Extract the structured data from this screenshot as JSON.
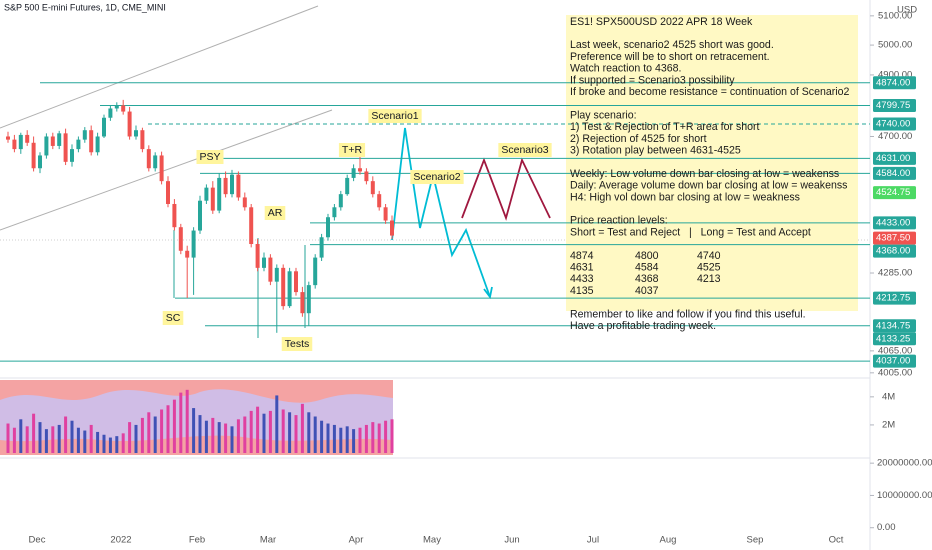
{
  "header": {
    "symbol": "S&P 500 E-mini Futures, 1D, CME_MINI",
    "currency": "USD"
  },
  "chart_data": {
    "type": "candlestick",
    "log_scale": true,
    "ylim": [
      3991,
      5155
    ],
    "yticks": [
      {
        "value": 5100,
        "label": "5100.00"
      },
      {
        "value": 5000,
        "label": "5000.00"
      },
      {
        "value": 4900,
        "label": "4900.00"
      },
      {
        "value": 4700,
        "label": "4700.00"
      },
      {
        "value": 4285,
        "label": "4285.00"
      },
      {
        "value": 4065,
        "label": "4065.00"
      },
      {
        "value": 4005,
        "label": "4005.00"
      }
    ],
    "x_labels": [
      "Dec",
      "2022",
      "Feb",
      "Mar",
      "Apr",
      "May",
      "Jun",
      "Jul",
      "Aug",
      "Sep",
      "Oct"
    ],
    "up_color": "#26a69a",
    "down_color": "#ef5350",
    "open": [
      4700,
      4690,
      4660,
      4705,
      4680,
      4600,
      4640,
      4700,
      4670,
      4710,
      4620,
      4660,
      4690,
      4720,
      4650,
      4700,
      4760,
      4790,
      4800,
      4780,
      4700,
      4720,
      4660,
      4600,
      4640,
      4560,
      4490,
      4420,
      4350,
      4330,
      4410,
      4500,
      4540,
      4470,
      4570,
      4520,
      4580,
      4510,
      4480,
      4370,
      4300,
      4330,
      4260,
      4300,
      4190,
      4290,
      4230,
      4170,
      4250,
      4330,
      4390,
      4450,
      4480,
      4520,
      4570,
      4600,
      4590,
      4560,
      4520,
      4480,
      4440
    ],
    "high": [
      4715,
      4705,
      4712,
      4720,
      4700,
      4650,
      4710,
      4712,
      4718,
      4725,
      4675,
      4700,
      4730,
      4735,
      4712,
      4770,
      4798,
      4810,
      4818,
      4795,
      4735,
      4728,
      4672,
      4650,
      4652,
      4575,
      4505,
      4430,
      4365,
      4420,
      4515,
      4550,
      4560,
      4585,
      4590,
      4595,
      4590,
      4525,
      4490,
      4385,
      4345,
      4340,
      4310,
      4310,
      4300,
      4300,
      4245,
      4260,
      4340,
      4400,
      4460,
      4490,
      4530,
      4580,
      4612,
      4637,
      4600,
      4575,
      4530,
      4490,
      4455
    ],
    "low": [
      4680,
      4650,
      4645,
      4670,
      4590,
      4585,
      4630,
      4660,
      4660,
      4610,
      4605,
      4650,
      4680,
      4640,
      4640,
      4695,
      4750,
      4780,
      4770,
      4690,
      4690,
      4650,
      4590,
      4590,
      4550,
      4480,
      4410,
      4340,
      4213,
      4222,
      4400,
      4490,
      4460,
      4462,
      4510,
      4510,
      4500,
      4470,
      4360,
      4290,
      4290,
      4250,
      4115,
      4180,
      4185,
      4220,
      4160,
      4135,
      4240,
      4320,
      4380,
      4440,
      4470,
      4515,
      4560,
      4580,
      4550,
      4510,
      4470,
      4430,
      4385
    ],
    "close": [
      4690,
      4660,
      4705,
      4680,
      4600,
      4640,
      4700,
      4670,
      4710,
      4620,
      4660,
      4690,
      4720,
      4650,
      4700,
      4760,
      4790,
      4800,
      4780,
      4700,
      4720,
      4660,
      4600,
      4640,
      4560,
      4490,
      4420,
      4350,
      4330,
      4410,
      4500,
      4540,
      4470,
      4570,
      4520,
      4580,
      4510,
      4480,
      4370,
      4300,
      4330,
      4260,
      4300,
      4190,
      4290,
      4230,
      4170,
      4250,
      4330,
      4390,
      4450,
      4480,
      4520,
      4570,
      4600,
      4590,
      4560,
      4520,
      4480,
      4440,
      4395
    ],
    "levels": [
      {
        "value": 4874,
        "label": "4874.00",
        "line": true,
        "color": "#26a69a"
      },
      {
        "value": 4799.75,
        "label": "4799.75",
        "line": true,
        "color": "#26a69a"
      },
      {
        "value": 4740,
        "label": "4740.00",
        "line": true,
        "dashed": true,
        "color": "#26a69a"
      },
      {
        "value": 4631,
        "label": "4631.00",
        "line": true,
        "color": "#26a69a"
      },
      {
        "value": 4584,
        "label": "4584.00",
        "line": true,
        "color": "#26a69a"
      },
      {
        "value": 4524.75,
        "label": "4524.75",
        "line": false,
        "color": "#4cd964"
      },
      {
        "value": 4433,
        "label": "4433.00",
        "line": true,
        "color": "#26a69a"
      },
      {
        "value": 4387.5,
        "label": "4387.50",
        "line": false,
        "color": "#ef5350"
      },
      {
        "value": 4368,
        "label": "4368.00",
        "line": true,
        "color": "#26a69a"
      },
      {
        "value": 4212.75,
        "label": "4212.75",
        "line": true,
        "color": "#26a69a"
      },
      {
        "value": 4134.75,
        "label": "4134.75",
        "line": true,
        "color": "#26a69a"
      },
      {
        "value": 4133.25,
        "label": "4133.25",
        "line": false,
        "color": "#26a69a"
      },
      {
        "value": 4037,
        "label": "4037.00",
        "line": true,
        "color": "#26a69a"
      }
    ],
    "annotations": [
      "PSY",
      "AR",
      "SC",
      "Tests",
      "T+R",
      "Scenario1",
      "Scenario2",
      "Scenario3"
    ],
    "volume": {
      "values": [
        2.1,
        1.8,
        2.4,
        1.9,
        2.8,
        2.2,
        1.7,
        1.9,
        2.0,
        2.6,
        2.3,
        1.8,
        1.6,
        2.0,
        1.5,
        1.3,
        1.1,
        1.2,
        1.4,
        2.2,
        2.0,
        2.5,
        2.9,
        2.6,
        3.1,
        3.4,
        3.8,
        4.3,
        4.5,
        3.2,
        2.7,
        2.3,
        2.5,
        2.2,
        2.1,
        1.9,
        2.4,
        2.6,
        3.0,
        3.3,
        2.8,
        3.0,
        4.1,
        3.1,
        2.9,
        2.7,
        3.5,
        2.9,
        2.6,
        2.3,
        2.1,
        2.0,
        1.8,
        1.9,
        1.7,
        1.8,
        2.0,
        2.2,
        2.1,
        2.3,
        2.4
      ],
      "ylim": [
        0,
        5.2
      ],
      "yticks": [
        {
          "value": 4,
          "label": "4M"
        },
        {
          "value": 2,
          "label": "2M"
        }
      ]
    },
    "lower_pane": {
      "ylim": [
        -6900000,
        21600000
      ],
      "yticks": [
        {
          "value": 20000000,
          "label": "20000000.00"
        },
        {
          "value": 10000000,
          "label": "10000000.00"
        },
        {
          "value": 0,
          "label": "0.00"
        }
      ]
    }
  },
  "note": {
    "paragraphs": [
      [
        "ES1! SPX500USD 2022 APR 18 Week"
      ],
      [
        "Last week, scenario2 4525 short was good.",
        "Preference will be to short on retracement.",
        "Watch reaction to 4368.",
        "If supported = Scenario3 possibility",
        "If broke and become resistance = continuation of Scenario2"
      ],
      [
        "Play scenario:",
        "1) Test & Rejection of T+R area for short",
        "2) Rejection of 4525 for short",
        "3) Rotation play between 4631-4525"
      ],
      [
        "Weekly: Low volume down bar closing at low = weakenss",
        "Daily: Average volume down bar closing at low = weakenss",
        "H4: High vol down bar closing at low = weakness"
      ],
      [
        "Price reaction levels:",
        "Short = Test and Reject   |   Long = Test and Accept"
      ]
    ],
    "table": [
      [
        4874,
        4800,
        4740
      ],
      [
        4631,
        4584,
        4525
      ],
      [
        4433,
        4368,
        4213
      ],
      [
        4135,
        4037
      ]
    ],
    "closing": [
      "Remember to like and follow if you find this useful.",
      "Have a profitable trading week."
    ]
  }
}
